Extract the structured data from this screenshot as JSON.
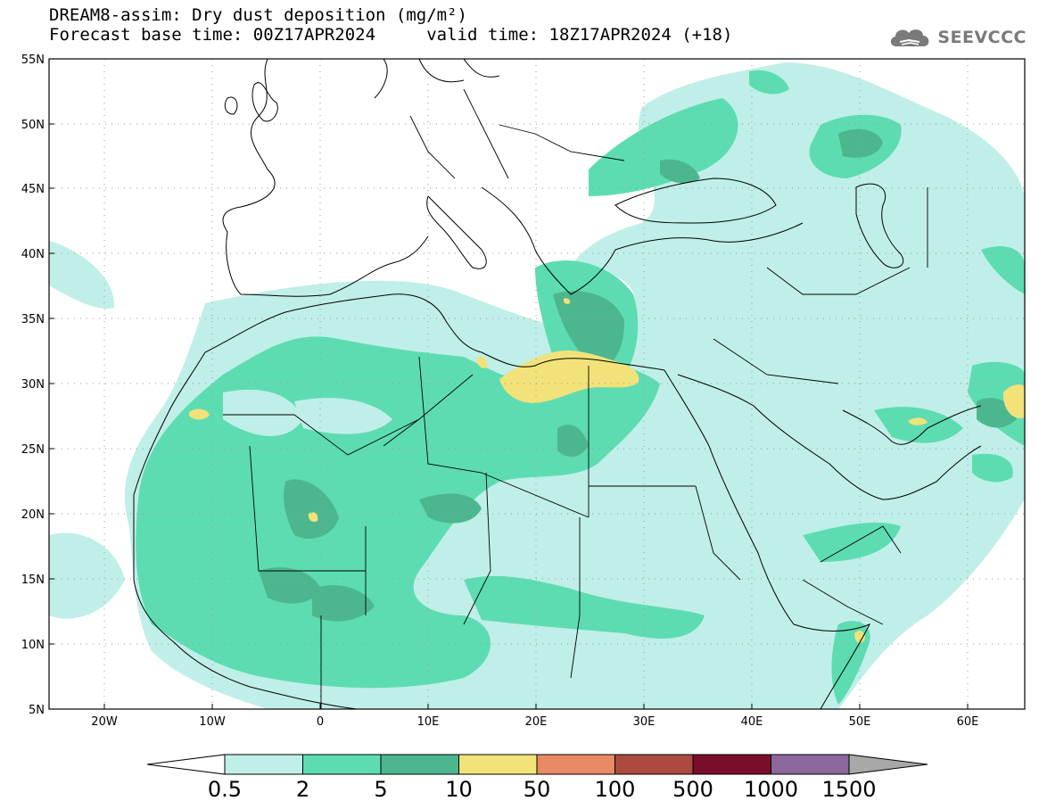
{
  "header": {
    "title_line1": "DREAM8-assim: Dry dust deposition (mg/m²)",
    "title_line2": "Forecast base time: 00Z17APR2024     valid time: 18Z17APR2024 (+18)"
  },
  "logo": {
    "text": "SEEVCCC",
    "icon": "cloud-icon"
  },
  "map": {
    "region": "North Africa, Europe and Middle East",
    "lon_ticks": [
      "20W",
      "10W",
      "0",
      "10E",
      "20E",
      "30E",
      "40E",
      "50E",
      "60E"
    ],
    "lat_ticks": [
      "55N",
      "50N",
      "45N",
      "40N",
      "35N",
      "30N",
      "25N",
      "20N",
      "15N",
      "10N",
      "5N"
    ],
    "colors": {
      "ocean": "#ffffff",
      "borders": "#000000",
      "grid": "#888888"
    }
  },
  "colorbar": {
    "labels": [
      "0.5",
      "2",
      "5",
      "10",
      "50",
      "100",
      "500",
      "1000",
      "1500"
    ],
    "colors": [
      "#bfefe8",
      "#5ddcb2",
      "#4cb78f",
      "#f2e27a",
      "#e88a64",
      "#ab4a3f",
      "#7a0e2a",
      "#8b679b"
    ],
    "low_end_color": "#ffffff",
    "high_end_color": "#a8a8a8"
  }
}
